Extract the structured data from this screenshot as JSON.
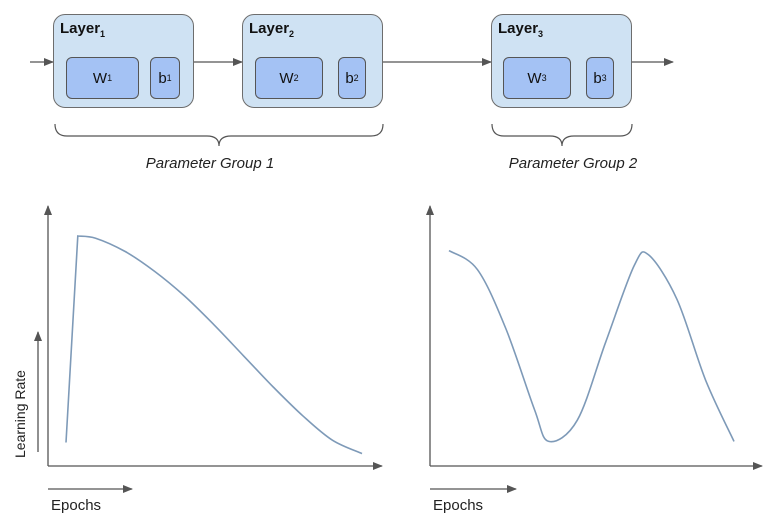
{
  "diagram": {
    "layers": [
      {
        "name": "Layer",
        "sub": "1",
        "weight": "W",
        "weight_sub": "1",
        "bias": "b",
        "bias_sub": "1"
      },
      {
        "name": "Layer",
        "sub": "2",
        "weight": "W",
        "weight_sub": "2",
        "bias": "b",
        "bias_sub": "2"
      },
      {
        "name": "Layer",
        "sub": "3",
        "weight": "W",
        "weight_sub": "3",
        "bias": "b",
        "bias_sub": "3"
      }
    ],
    "groups": [
      {
        "label": "Parameter Group 1"
      },
      {
        "label": "Parameter Group 2"
      }
    ]
  },
  "colors": {
    "layer_fill": "#cfe2f3",
    "cell_fill": "#a4c2f4",
    "curve": "#7e9ab8",
    "axis": "#555555"
  },
  "chart_data": [
    {
      "type": "line",
      "xlabel": "Epochs",
      "ylabel": "Learning Rate",
      "shape": "linear warmup then cosine decay",
      "x": [
        0,
        0.04,
        0.1,
        0.2,
        0.3,
        0.4,
        0.5,
        0.6,
        0.7,
        0.8,
        0.9,
        1.0
      ],
      "y": [
        0.07,
        1.0,
        0.99,
        0.93,
        0.84,
        0.73,
        0.6,
        0.46,
        0.32,
        0.19,
        0.08,
        0.02
      ]
    },
    {
      "type": "line",
      "xlabel": "Epochs",
      "shape": "cyclic cosine schedule",
      "x": [
        0,
        0.1,
        0.2,
        0.3,
        0.35,
        0.45,
        0.55,
        0.65,
        0.7,
        0.8,
        0.9,
        1.0
      ],
      "y": [
        0.95,
        0.86,
        0.58,
        0.2,
        0.05,
        0.15,
        0.52,
        0.88,
        0.93,
        0.72,
        0.34,
        0.05
      ]
    }
  ]
}
